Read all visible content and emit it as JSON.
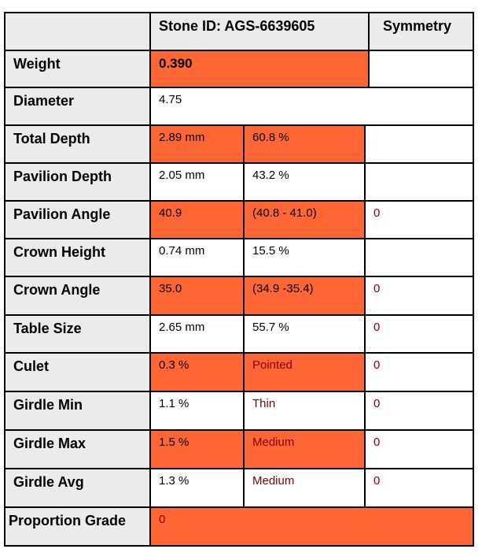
{
  "header": {
    "stone_id": "Stone ID: AGS-6639605",
    "symmetry": "Symmetry"
  },
  "rows": {
    "weight": {
      "label": "Weight",
      "value": "0.390"
    },
    "diameter": {
      "label": "Diameter",
      "value": "4.75"
    },
    "total_depth": {
      "label": "Total Depth",
      "mm": "2.89 mm",
      "pct": "60.8 %"
    },
    "pavilion_depth": {
      "label": "Pavilion Depth",
      "mm": "2.05 mm",
      "pct": "43.2 %"
    },
    "pavilion_angle": {
      "label": "Pavilion Angle",
      "value": "40.9",
      "range": "(40.8 - 41.0)",
      "symmetry": "0"
    },
    "crown_height": {
      "label": "Crown Height",
      "mm": "0.74 mm",
      "pct": "15.5 %"
    },
    "crown_angle": {
      "label": "Crown Angle",
      "value": "35.0",
      "range": "(34.9 -35.4)",
      "symmetry": "0"
    },
    "table_size": {
      "label": "Table Size",
      "mm": "2.65 mm",
      "pct": "55.7 %",
      "symmetry": "0"
    },
    "culet": {
      "label": "Culet",
      "pct": "0.3 %",
      "desc": "Pointed",
      "symmetry": "0"
    },
    "girdle_min": {
      "label": "Girdle Min",
      "pct": "1.1 %",
      "desc": "Thin",
      "symmetry": "0"
    },
    "girdle_max": {
      "label": "Girdle Max",
      "pct": "1.5 %",
      "desc": "Medium",
      "symmetry": "0"
    },
    "girdle_avg": {
      "label": "Girdle Avg",
      "pct": "1.3 %",
      "desc": "Medium",
      "symmetry": "0"
    },
    "proportion_grade": {
      "label": "Proportion Grade",
      "value": "0"
    }
  },
  "colors": {
    "highlight": "#ff6633",
    "label_bg": "#ebebeb",
    "dark_red_text": "#800000"
  }
}
